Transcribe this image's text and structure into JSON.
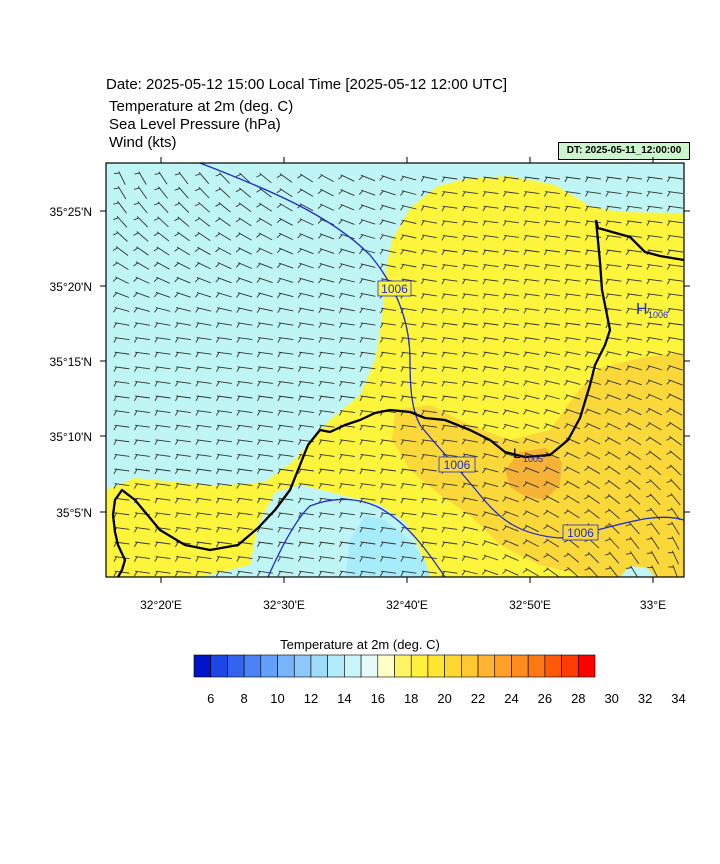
{
  "header": {
    "date_title": "Date: 2025-05-12  15:00 Local Time [2025-05-12  12:00 UTC]",
    "variables": [
      "Temperature at 2m   (deg. C)",
      "Sea Level Pressure   (hPa)",
      "Wind   (kts)"
    ],
    "dt_badge": "DT: 2025-05-11_12:00:00"
  },
  "map": {
    "lat_labels": [
      "35°25'N",
      "35°20'N",
      "35°15'N",
      "35°10'N",
      "35°5'N"
    ],
    "lon_labels": [
      "32°20'E",
      "32°30'E",
      "32°40'E",
      "32°50'E",
      "33°E"
    ],
    "isobar_labels": [
      "1006",
      "1006",
      "1006"
    ],
    "pressure_centers": [
      {
        "symbol": "H",
        "value": "1006"
      },
      {
        "symbol": "L",
        "value": "1005"
      }
    ],
    "colors": {
      "cool_cyan": "#bff5f5",
      "cool_mid": "#a6ecfa",
      "warm_yellow": "#fdf53c",
      "warm_gold": "#fbd83a",
      "warm_orange": "#f6b137",
      "isobar": "#1e2ccc",
      "coast": "#000000"
    }
  },
  "colorbar": {
    "title": "Temperature at 2m  (deg. C)",
    "tick_labels": [
      "6",
      "8",
      "10",
      "12",
      "14",
      "16",
      "18",
      "20",
      "22",
      "24",
      "26",
      "28",
      "30",
      "32",
      "34"
    ],
    "colors": [
      "#0014c8",
      "#1e46e6",
      "#3264f0",
      "#4b82f5",
      "#64a0fa",
      "#78b4fa",
      "#8cc8fa",
      "#a0dcfa",
      "#b4ebfa",
      "#c8f5fa",
      "#e6fafa",
      "#ffffc8",
      "#fff564",
      "#fff03c",
      "#ffe632",
      "#ffd732",
      "#ffc832",
      "#ffb432",
      "#ffa028",
      "#ff8c1e",
      "#ff7814",
      "#ff5a0a",
      "#ff3c00",
      "#ff0000"
    ]
  }
}
